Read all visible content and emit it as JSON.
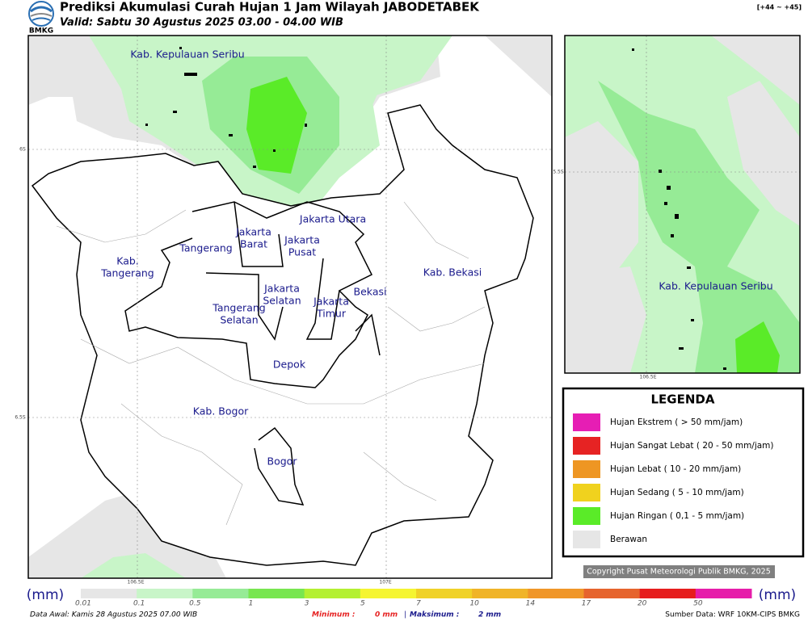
{
  "header": {
    "logo_text": "BMKG",
    "title": "Prediksi Akumulasi Curah Hujan 1 Jam Wilayah JABODETABEK",
    "subtitle": "Valid: Sabtu 30 Agustus 2025 03.00 - 04.00 WIB",
    "range": "[+44 ~ +45]"
  },
  "map": {
    "labels": [
      [
        "Kab. Kepulauan Seribu"
      ],
      [
        "Jakarta Utara"
      ],
      [
        "Jakarta",
        "Barat"
      ],
      [
        "Jakarta",
        "Pusat"
      ],
      [
        "Tangerang"
      ],
      [
        "Kab.",
        "Tangerang"
      ],
      [
        "Jakarta",
        "Selatan"
      ],
      [
        "Jakarta",
        "Timur"
      ],
      [
        "Bekasi"
      ],
      [
        "Kab. Bekasi"
      ],
      [
        "Tangerang",
        "Selatan"
      ],
      [
        "Depok"
      ],
      [
        "Kab. Bogor"
      ],
      [
        "Bogor"
      ]
    ],
    "axis_labels": [
      "6S",
      "6.5S",
      "106.5E",
      "107E"
    ]
  },
  "inset": {
    "label": "Kab. Kepulauan Seribu",
    "axis_labels": [
      "5.5S",
      "106.5E"
    ]
  },
  "legend": {
    "title": "LEGENDA",
    "items": [
      {
        "label": "Hujan Ekstrem ( > 50 mm/jam)",
        "color": "#e61eb4"
      },
      {
        "label": "Hujan Sangat Lebat ( 20 - 50 mm/jam)",
        "color": "#e62323"
      },
      {
        "label": "Hujan Lebat ( 10 - 20 mm/jam)",
        "color": "#ee9623"
      },
      {
        "label": "Hujan Sedang ( 5 - 10 mm/jam)",
        "color": "#f0d21e"
      },
      {
        "label": "Hujan Ringan ( 0,1 - 5 mm/jam)",
        "color": "#5aeb28"
      },
      {
        "label": "Berawan",
        "color": "#e6e6e6"
      }
    ]
  },
  "copyright": "Copyright Pusat Meteorologi Publik BMKG, 2025",
  "colorbar": {
    "unit": "(mm)",
    "ticks": [
      "0.01",
      "0.1",
      "0.5",
      "1",
      "3",
      "5",
      "7",
      "10",
      "14",
      "17",
      "20",
      "50"
    ],
    "colors": [
      "#e6e6e6",
      "#c8f5c8",
      "#96eb96",
      "#78e650",
      "#b4f032",
      "#f5f532",
      "#f0d228",
      "#f0b428",
      "#f09628",
      "#e6642d",
      "#e61e1e",
      "#e61eaa"
    ]
  },
  "footer": {
    "data_awal": "Data Awal: Kamis 28 Agustus 2025 07.00 WIB",
    "min_label": "Minimum :",
    "min_value": "0 mm",
    "separator": "|",
    "max_label": "Maksimum :",
    "max_value": "2 mm",
    "source": "Sumber Data: WRF 10KM-CIPS BMKG"
  }
}
